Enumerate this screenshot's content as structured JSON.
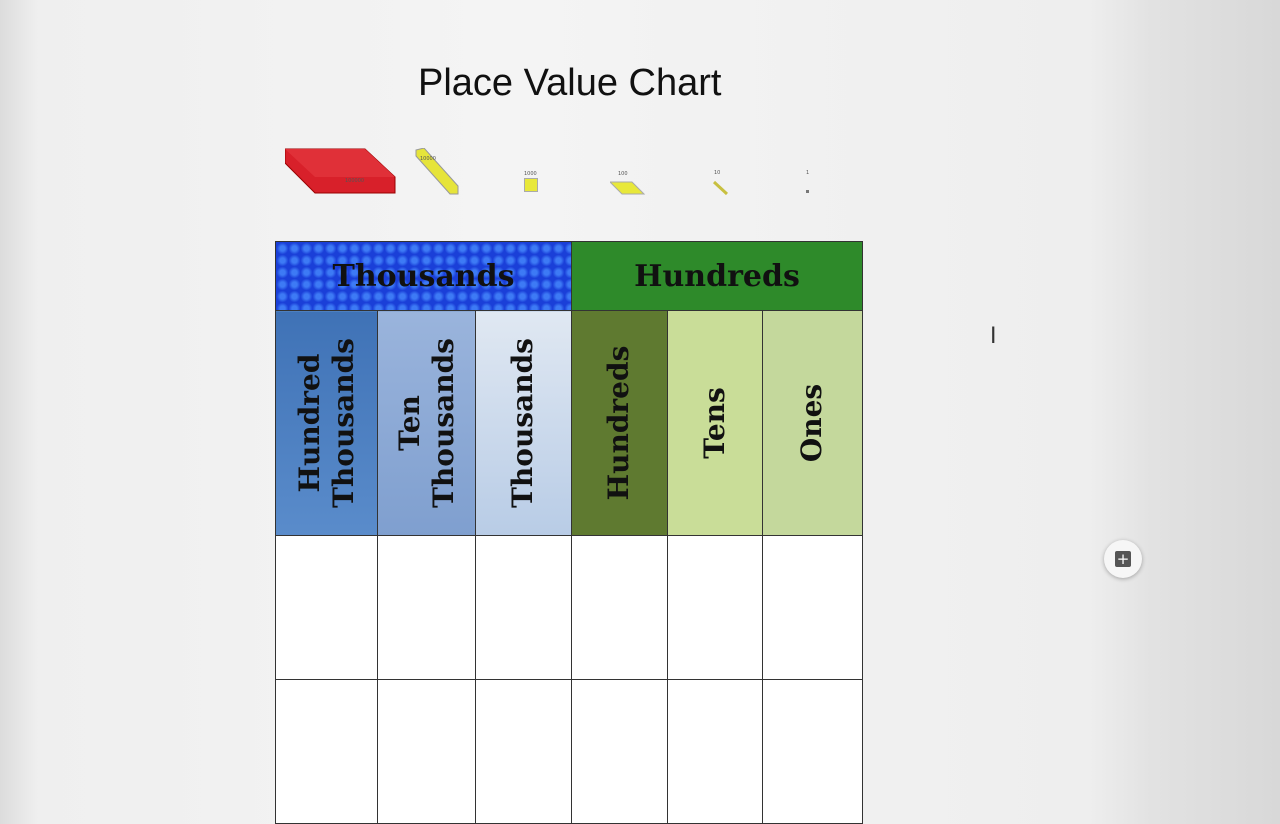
{
  "document": {
    "title": "Place Value Chart"
  },
  "blocks": [
    {
      "label": "100000",
      "color": "#d8202a"
    },
    {
      "label": "10000",
      "color": "#e6e43a"
    },
    {
      "label": "1000",
      "color": "#e8e83a"
    },
    {
      "label": "100",
      "color": "#e8e83a"
    },
    {
      "label": "10",
      "color": "#d8d040"
    },
    {
      "label": "1",
      "color": "#777"
    }
  ],
  "chart": {
    "groups": [
      {
        "label": "Thousands",
        "color": "#1f4fe0"
      },
      {
        "label": "Hundreds",
        "color": "#2e8a2a"
      }
    ],
    "columns": [
      {
        "label": "Hundred\nThousands",
        "color": "#4a7fbf"
      },
      {
        "label": "Ten\nThousands",
        "color": "#8aaad6"
      },
      {
        "label": "Thousands",
        "color": "#c8d8ec"
      },
      {
        "label": "Hundreds",
        "color": "#5f7a30"
      },
      {
        "label": "Tens",
        "color": "#c2d88f"
      },
      {
        "label": "Ones",
        "color": "#c8dca0"
      }
    ]
  },
  "ui": {
    "add_comment_icon": "+"
  }
}
